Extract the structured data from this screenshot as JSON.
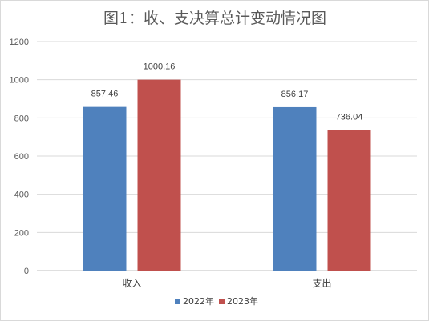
{
  "chart_data": {
    "type": "bar",
    "title": "图1：收、支决算总计变动情况图",
    "categories": [
      "收入",
      "支出"
    ],
    "series": [
      {
        "name": "2022年",
        "values": [
          857.46,
          856.17
        ],
        "labels": [
          "857.46",
          "856.17"
        ],
        "color": "#4f81bd"
      },
      {
        "name": "2023年",
        "values": [
          1000.16,
          736.04
        ],
        "labels": [
          "1000.16",
          "736.04"
        ],
        "color": "#c0504d"
      }
    ],
    "y_ticks": [
      "0",
      "200",
      "400",
      "600",
      "800",
      "1000",
      "1200"
    ],
    "ylim": [
      0,
      1200
    ],
    "grid": true,
    "legend_position": "bottom"
  }
}
